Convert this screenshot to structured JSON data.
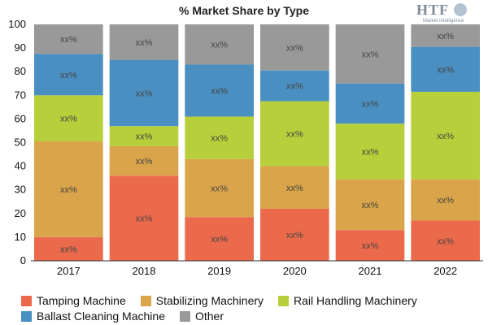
{
  "chart_data": {
    "type": "bar",
    "stacked": true,
    "title": "% Market Share by Type",
    "categories": [
      "2017",
      "2018",
      "2019",
      "2020",
      "2021",
      "2022"
    ],
    "ylim": [
      0,
      100
    ],
    "yticks": [
      0,
      10,
      20,
      30,
      40,
      50,
      60,
      70,
      80,
      90,
      100
    ],
    "grid": false,
    "legend_position": "bottom",
    "series": [
      {
        "name": "Tamping Machine",
        "color": "#ec6a4c",
        "values": [
          10,
          36,
          18.5,
          22,
          13,
          17
        ]
      },
      {
        "name": "Stabilizing Machinery",
        "color": "#d9a44a",
        "values": [
          40.5,
          12.5,
          24.5,
          18,
          21.5,
          17.5
        ]
      },
      {
        "name": "Rail Handling Machinery",
        "color": "#b7cf3a",
        "values": [
          19.5,
          8.5,
          18,
          27.5,
          23.5,
          37
        ]
      },
      {
        "name": "Ballast Cleaning Machine",
        "color": "#4a8fc1",
        "values": [
          17.5,
          28,
          22,
          13,
          17,
          19
        ]
      },
      {
        "name": "Other",
        "color": "#999999",
        "values": [
          12.5,
          15,
          17,
          19.5,
          25,
          9.5
        ]
      }
    ],
    "data_label": "xx%"
  },
  "logo": {
    "text": "HTF",
    "sub": "Market Intelligence"
  }
}
